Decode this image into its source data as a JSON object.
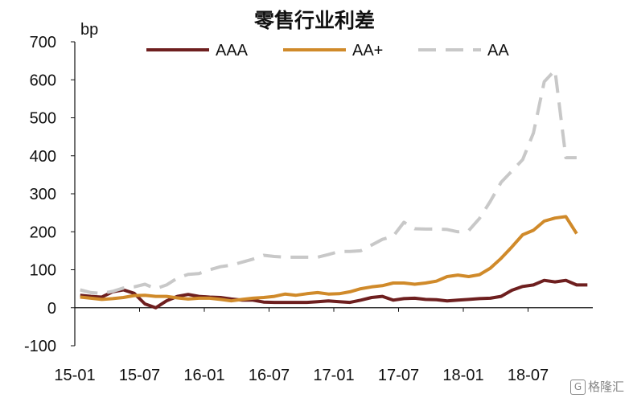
{
  "chart_data": {
    "type": "line",
    "title": "零售行业利差",
    "ylabel": "bp",
    "xlabel": "",
    "ylim": [
      -100,
      700
    ],
    "yticks": [
      -100,
      0,
      100,
      200,
      300,
      400,
      500,
      600,
      700
    ],
    "xticks": [
      "15-01",
      "15-07",
      "16-01",
      "16-07",
      "17-01",
      "17-07",
      "18-01",
      "18-07"
    ],
    "x_start_month": "2015-01",
    "grid": false,
    "legend_position": "top",
    "series": [
      {
        "name": "AAA",
        "color": "#6e1f1f",
        "dash": "solid",
        "values": [
          33,
          30,
          28,
          42,
          47,
          38,
          10,
          0,
          18,
          30,
          35,
          30,
          28,
          27,
          23,
          20,
          20,
          15,
          14,
          14,
          14,
          14,
          16,
          18,
          16,
          14,
          20,
          27,
          30,
          20,
          24,
          25,
          22,
          21,
          18,
          20,
          22,
          24,
          25,
          30,
          46,
          56,
          60,
          72,
          68,
          72,
          60,
          60
        ]
      },
      {
        "name": "AA+",
        "color": "#d08a2a",
        "dash": "solid",
        "values": [
          28,
          25,
          22,
          24,
          27,
          32,
          33,
          30,
          30,
          26,
          23,
          25,
          25,
          22,
          18,
          22,
          25,
          27,
          30,
          36,
          33,
          37,
          40,
          36,
          37,
          42,
          50,
          55,
          58,
          65,
          65,
          62,
          65,
          70,
          82,
          86,
          82,
          87,
          104,
          130,
          160,
          192,
          204,
          228,
          236,
          240,
          195
        ]
      },
      {
        "name": "AA",
        "color": "#c8c8c8",
        "dash": "dashed",
        "values": [
          47,
          40,
          38,
          43,
          52,
          55,
          62,
          50,
          60,
          78,
          88,
          90,
          100,
          108,
          112,
          120,
          128,
          138,
          135,
          133,
          133,
          133,
          133,
          140,
          148,
          148,
          150,
          165,
          180,
          188,
          225,
          208,
          207,
          207,
          206,
          200,
          203,
          235,
          280,
          330,
          360,
          390,
          460,
          595,
          625,
          395,
          395
        ]
      }
    ]
  },
  "watermark": "格隆汇"
}
